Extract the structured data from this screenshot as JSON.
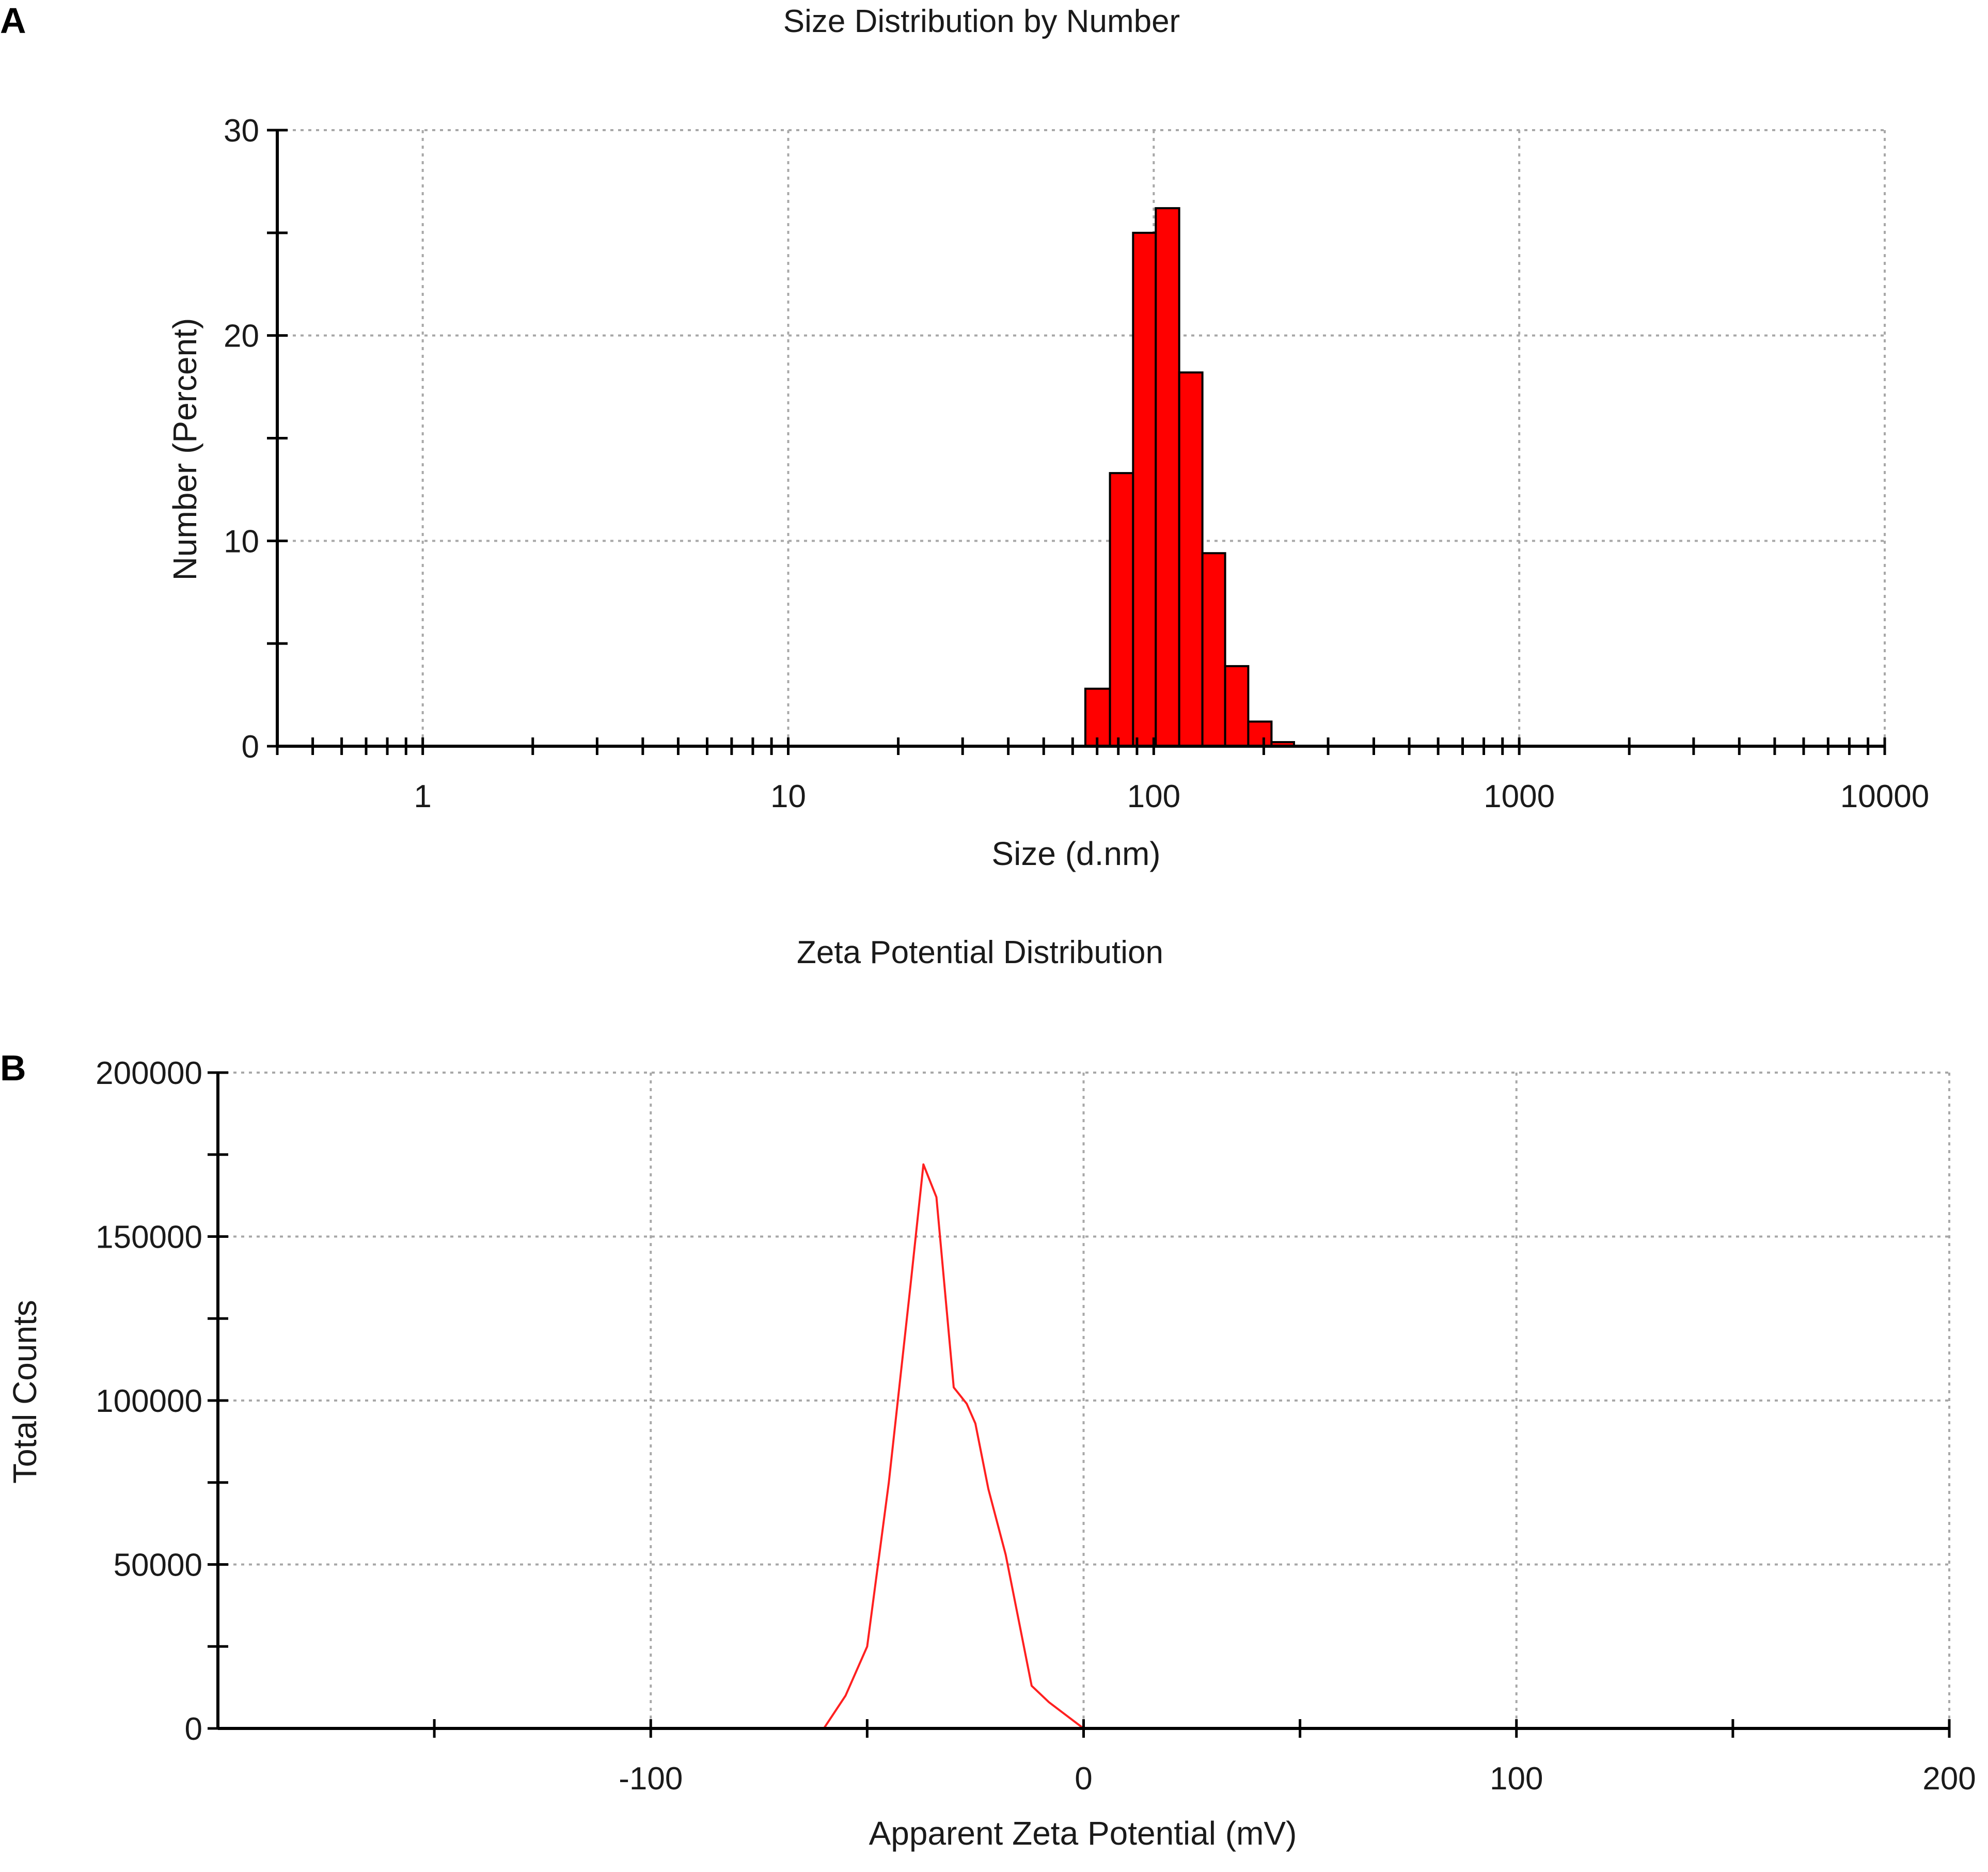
{
  "chart_data": [
    {
      "panel": "A",
      "type": "bar",
      "title": "Size Distribution by Number",
      "xlabel": "Size (d.nm)",
      "ylabel": "Number (Percent)",
      "x_scale": "log",
      "xlim": [
        0.4,
        10000
      ],
      "ylim": [
        0,
        30
      ],
      "x_ticks": [
        1,
        10,
        100,
        1000,
        10000
      ],
      "x_tick_labels": [
        "1",
        "10",
        "100",
        "1000",
        "10000"
      ],
      "y_ticks": [
        0,
        10,
        20,
        30
      ],
      "y_tick_labels": [
        "0",
        "10",
        "20",
        "30"
      ],
      "grid": true,
      "color": "#ff0000",
      "bins": [
        {
          "from": 65,
          "to": 75.9,
          "value": 2.8
        },
        {
          "from": 75.9,
          "to": 87.8,
          "value": 13.3
        },
        {
          "from": 87.8,
          "to": 101.3,
          "value": 25.0
        },
        {
          "from": 101.3,
          "to": 117.4,
          "value": 26.2
        },
        {
          "from": 117.4,
          "to": 135.9,
          "value": 18.2
        },
        {
          "from": 135.9,
          "to": 156.8,
          "value": 9.4
        },
        {
          "from": 156.8,
          "to": 181.4,
          "value": 3.9
        },
        {
          "from": 181.4,
          "to": 210,
          "value": 1.2
        },
        {
          "from": 210,
          "to": 242,
          "value": 0.2
        }
      ]
    },
    {
      "panel": "B",
      "type": "line",
      "title": "Zeta Potential Distribution",
      "xlabel": "Apparent Zeta Potential (mV)",
      "ylabel": "Total Counts",
      "xlim": [
        -200,
        200
      ],
      "ylim": [
        0,
        200000
      ],
      "x_ticks": [
        -100,
        0,
        100,
        200
      ],
      "x_tick_labels": [
        "-100",
        "0",
        "100",
        "200"
      ],
      "y_ticks": [
        0,
        50000,
        100000,
        150000,
        200000
      ],
      "y_tick_labels": [
        "0",
        "50000",
        "100000",
        "150000",
        "200000"
      ],
      "grid": true,
      "color": "#ff2020",
      "series": [
        {
          "x": [
            -150,
            -130,
            -110,
            -90,
            -75,
            -60,
            -55,
            -50,
            -45,
            -40,
            -37,
            -34,
            -30,
            -27,
            -25,
            -22,
            -18,
            -15,
            -12,
            -8,
            -5,
            0,
            20,
            40,
            60,
            80,
            100,
            120,
            150
          ],
          "y": [
            0,
            0,
            0,
            0,
            0,
            0,
            10000,
            25000,
            75000,
            135000,
            172000,
            162000,
            104000,
            99000,
            93000,
            73000,
            53000,
            33000,
            13000,
            8000,
            5000,
            0,
            0,
            0,
            0,
            0,
            0,
            0,
            0
          ]
        }
      ]
    }
  ],
  "panel_letters": [
    "A",
    "B"
  ]
}
